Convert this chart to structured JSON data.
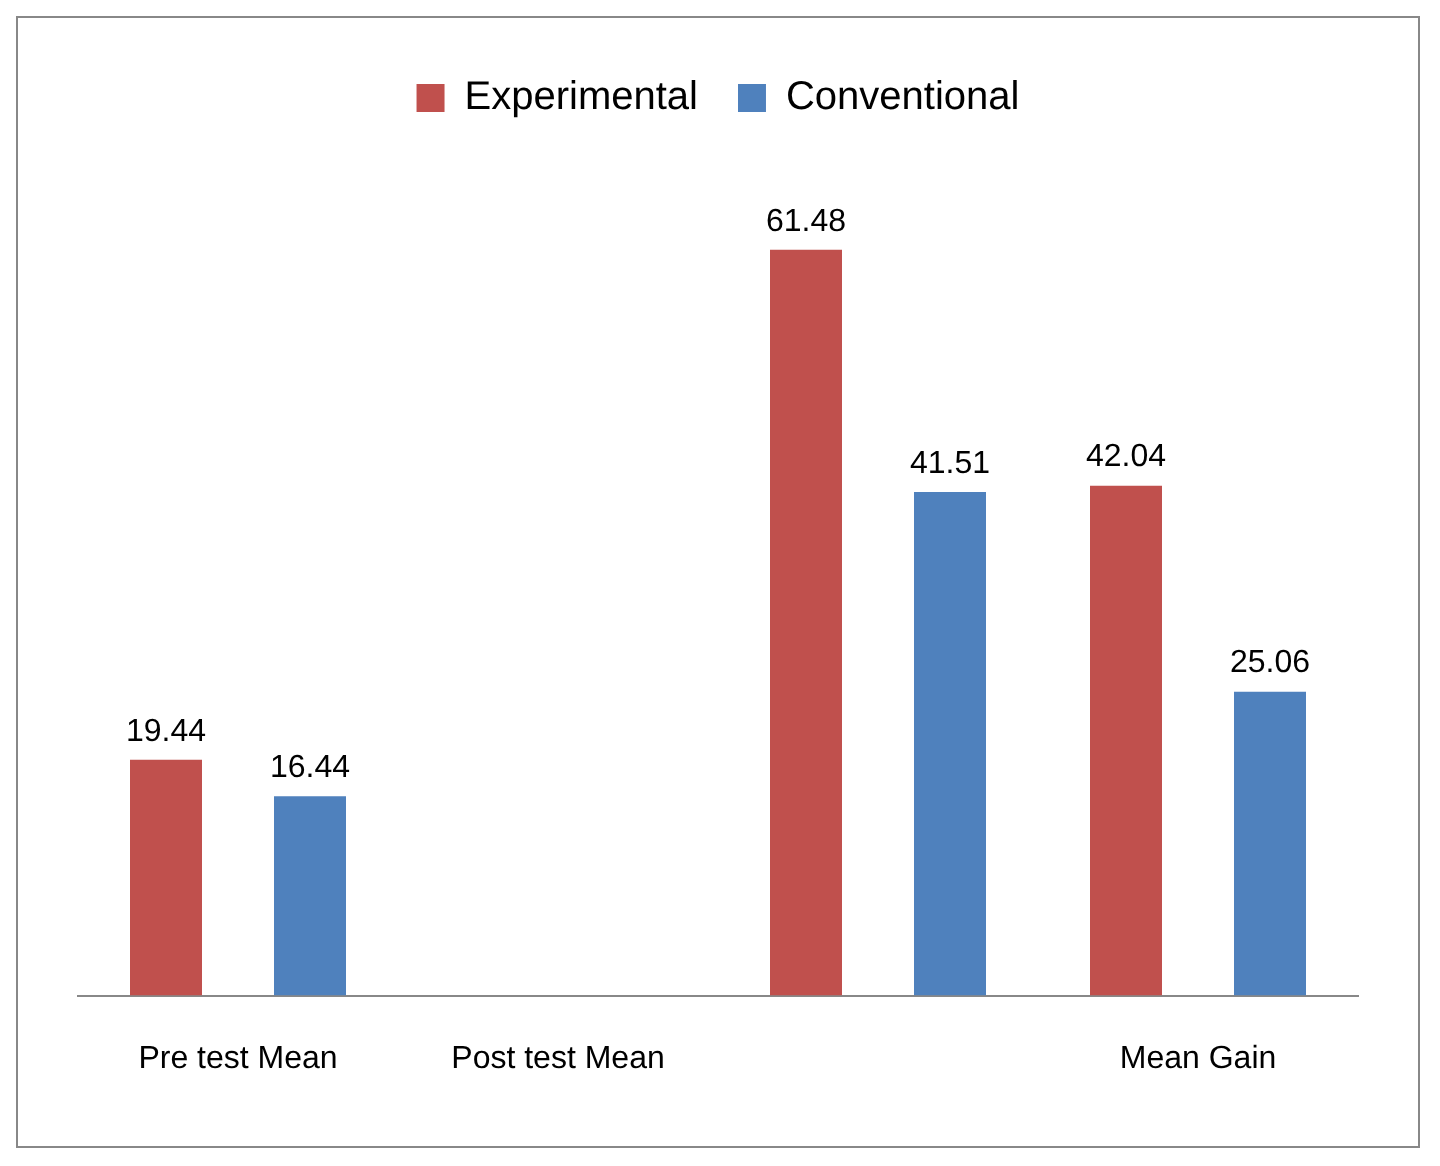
{
  "chart_data": {
    "type": "bar",
    "categories": [
      "Pre test Mean",
      "Post test Mean",
      null,
      "Mean Gain"
    ],
    "series": [
      {
        "name": "Experimental",
        "color": "#c0504d",
        "values": [
          19.44,
          null,
          61.48,
          42.04
        ]
      },
      {
        "name": "Conventional",
        "color": "#4f81bd",
        "values": [
          16.44,
          null,
          41.51,
          25.06
        ]
      }
    ],
    "data_labels": true,
    "legend": "top",
    "grid": false
  }
}
